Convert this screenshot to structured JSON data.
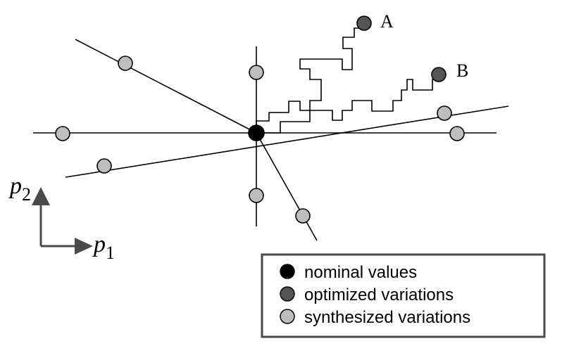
{
  "points": {
    "a_label": "A",
    "b_label": "B"
  },
  "axes": {
    "p2_base": "p",
    "p2_sub": "2",
    "p1_base": "p",
    "p1_sub": "1"
  },
  "legend": {
    "items": [
      {
        "label": "nominal values",
        "color": "#000000"
      },
      {
        "label": "optimized variations",
        "color": "#555555"
      },
      {
        "label": "synthesized variations",
        "color": "#bdbdbd"
      }
    ]
  }
}
